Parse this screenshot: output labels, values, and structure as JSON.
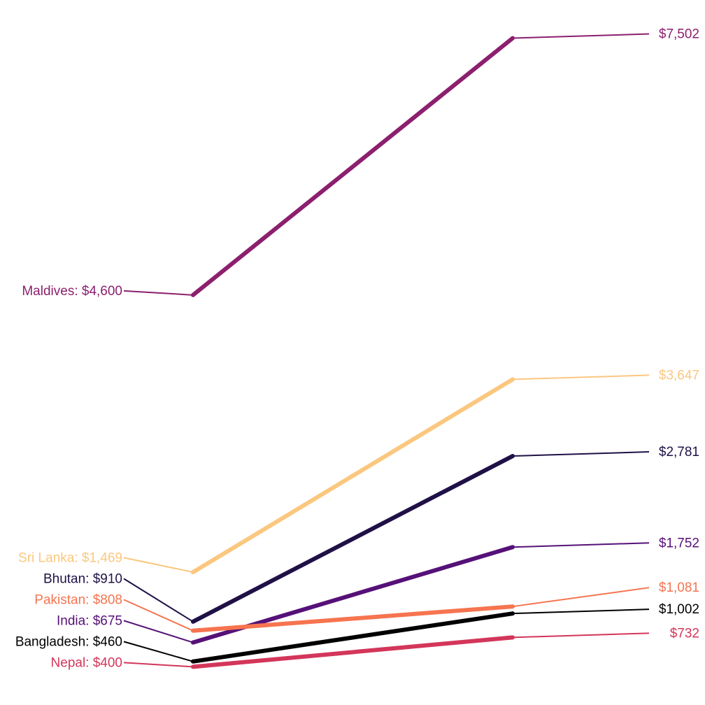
{
  "chart_data": {
    "type": "line",
    "title": "",
    "xlabel": "",
    "ylabel": "",
    "ylim": [
      0,
      8000
    ],
    "grid": false,
    "legend": "none",
    "series": [
      {
        "name": "Maldives",
        "start": 4600,
        "end": 7502,
        "start_label": "Maldives: $4,600",
        "end_label": "$7,502",
        "color": "#8c1f6e"
      },
      {
        "name": "Sri Lanka",
        "start": 1469,
        "end": 3647,
        "start_label": "Sri Lanka: $1,469",
        "end_label": "$3,647",
        "color": "#fbc77f"
      },
      {
        "name": "Bhutan",
        "start": 910,
        "end": 2781,
        "start_label": "Bhutan: $910",
        "end_label": "$2,781",
        "color": "#1f1147"
      },
      {
        "name": "India",
        "start": 675,
        "end": 1752,
        "start_label": "India: $675",
        "end_label": "$1,752",
        "color": "#561178"
      },
      {
        "name": "Pakistan",
        "start": 808,
        "end": 1081,
        "start_label": "Pakistan: $808",
        "end_label": "$1,081",
        "color": "#f6744f"
      },
      {
        "name": "Bangladesh",
        "start": 460,
        "end": 1002,
        "start_label": "Bangladesh: $460",
        "end_label": "$1,002",
        "color": "#000000"
      },
      {
        "name": "Nepal",
        "start": 400,
        "end": 732,
        "start_label": "Nepal: $400",
        "end_label": "$732",
        "color": "#d3365a"
      }
    ]
  }
}
